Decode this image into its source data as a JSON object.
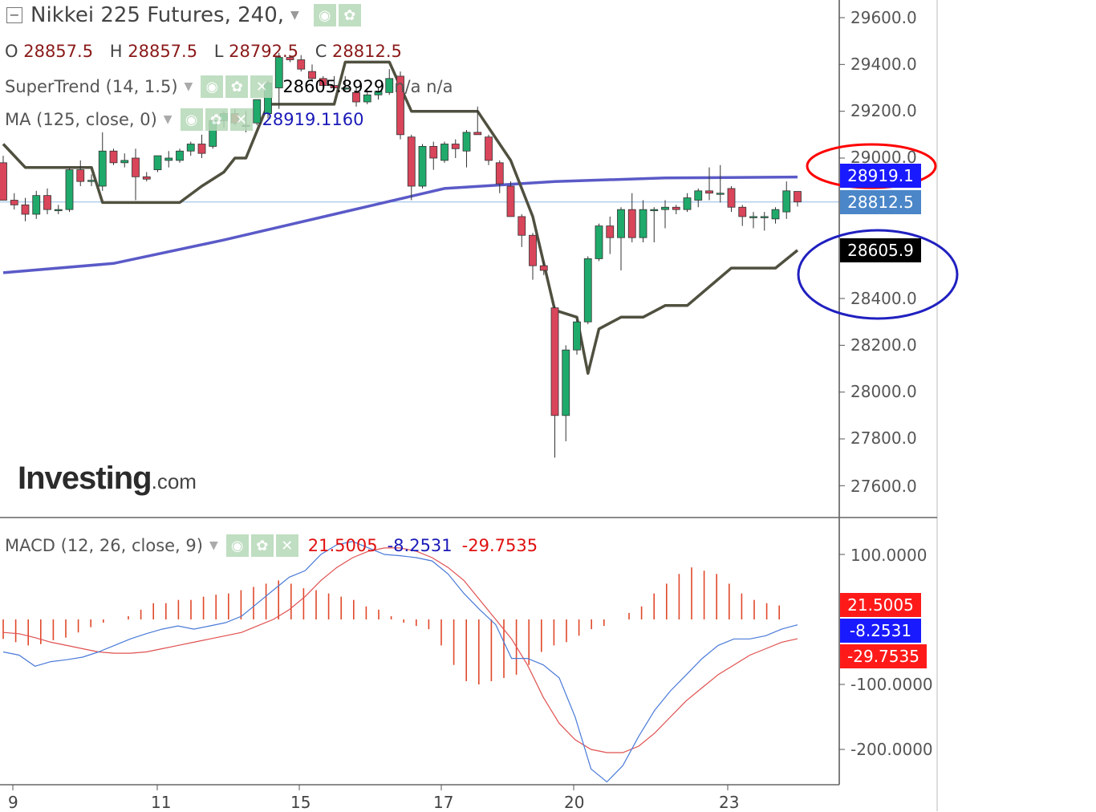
{
  "header": {
    "collapse_symbol": "−",
    "title": "Nikkei 225 Futures, 240,",
    "ohlc": [
      {
        "label": "O",
        "value": "28857.5"
      },
      {
        "label": "H",
        "value": "28857.5"
      },
      {
        "label": "L",
        "value": "28792.5"
      },
      {
        "label": "C",
        "value": "28812.5"
      }
    ]
  },
  "indicators": {
    "supertrend": {
      "label": "SuperTrend (14, 1.5)",
      "value": "28605.8929",
      "extra": "n/a  n/a"
    },
    "ma": {
      "label": "MA (125, close, 0)",
      "value": "28919.1160"
    },
    "macd": {
      "label": "MACD (12, 26, close, 9)",
      "v1": "21.5005",
      "v2": "-8.2531",
      "v3": "-29.7535"
    }
  },
  "icons": {
    "eye": "eye-icon",
    "gear": "gear-icon",
    "close": "close-icon"
  },
  "logo": {
    "main": "Investing",
    "suffix": ".com"
  },
  "price_axis": {
    "ticks": [
      "29600.0",
      "29400.0",
      "29200.0",
      "29000.0",
      "28400.0",
      "28200.0",
      "28000.0",
      "27800.0",
      "27600.0"
    ],
    "tags": [
      {
        "name": "ma-price-tag",
        "text": "28919.1",
        "color": "#1a1aff"
      },
      {
        "name": "last-price-tag",
        "text": "28812.5",
        "color": "#4a86c8"
      },
      {
        "name": "supertrend-price-tag",
        "text": "28605.9",
        "color": "#000000"
      }
    ]
  },
  "macd_axis": {
    "ticks": [
      "100.0000",
      "-100.0000",
      "-200.0000"
    ],
    "tags": [
      {
        "name": "macd-hist-tag",
        "text": "21.5005",
        "color": "#ff1a1a"
      },
      {
        "name": "macd-line-tag",
        "text": "-8.2531",
        "color": "#1a1aff"
      },
      {
        "name": "macd-signal-tag",
        "text": "-29.7535",
        "color": "#ff1a1a"
      }
    ]
  },
  "date_axis": {
    "labels": [
      "9",
      "11",
      "15",
      "17",
      "20",
      "23"
    ]
  },
  "colors": {
    "up": "#1faa6b",
    "down": "#d9455a",
    "supertrend": "#505040",
    "ma": "#5a5ac8",
    "macd": "#4a7ad8",
    "signal": "#e05050",
    "hist": "#e0482a",
    "annot_red": "#ff0000",
    "annot_blue": "#2020c0"
  },
  "chart_data": {
    "type": "candlestick",
    "title": "Nikkei 225 Futures, 240,",
    "timeframe": "240",
    "ylim": [
      27500,
      29650
    ],
    "last_close": 28812.5,
    "candles": [
      {
        "o": 28980,
        "h": 29010,
        "l": 28820,
        "c": 28820
      },
      {
        "o": 28820,
        "h": 28850,
        "l": 28780,
        "c": 28800
      },
      {
        "o": 28800,
        "h": 28830,
        "l": 28730,
        "c": 28760
      },
      {
        "o": 28760,
        "h": 28860,
        "l": 28740,
        "c": 28840
      },
      {
        "o": 28840,
        "h": 28870,
        "l": 28760,
        "c": 28780
      },
      {
        "o": 28780,
        "h": 28800,
        "l": 28760,
        "c": 28780
      },
      {
        "o": 28780,
        "h": 28960,
        "l": 28770,
        "c": 28950
      },
      {
        "o": 28950,
        "h": 28990,
        "l": 28880,
        "c": 28900
      },
      {
        "o": 28900,
        "h": 28930,
        "l": 28880,
        "c": 28905
      },
      {
        "o": 28880,
        "h": 29110,
        "l": 28860,
        "c": 29030
      },
      {
        "o": 29030,
        "h": 29040,
        "l": 28970,
        "c": 28980
      },
      {
        "o": 28980,
        "h": 29020,
        "l": 28960,
        "c": 28990
      },
      {
        "o": 29000,
        "h": 29040,
        "l": 28820,
        "c": 28920
      },
      {
        "o": 28920,
        "h": 28940,
        "l": 28900,
        "c": 28910
      },
      {
        "o": 28950,
        "h": 29010,
        "l": 28940,
        "c": 29010
      },
      {
        "o": 28990,
        "h": 29030,
        "l": 28960,
        "c": 29000
      },
      {
        "o": 28990,
        "h": 29040,
        "l": 28980,
        "c": 29030
      },
      {
        "o": 29030,
        "h": 29070,
        "l": 29010,
        "c": 29060
      },
      {
        "o": 29060,
        "h": 29100,
        "l": 29000,
        "c": 29020
      },
      {
        "o": 29050,
        "h": 29170,
        "l": 29040,
        "c": 29160
      },
      {
        "o": 29160,
        "h": 29200,
        "l": 29130,
        "c": 29190
      },
      {
        "o": 29190,
        "h": 29210,
        "l": 29140,
        "c": 29150
      },
      {
        "o": 29140,
        "h": 29200,
        "l": 29110,
        "c": 29140
      },
      {
        "o": 29150,
        "h": 29250,
        "l": 29140,
        "c": 29250
      },
      {
        "o": 29190,
        "h": 29330,
        "l": 29170,
        "c": 29320
      },
      {
        "o": 29300,
        "h": 29450,
        "l": 29210,
        "c": 29430
      },
      {
        "o": 29430,
        "h": 29440,
        "l": 29410,
        "c": 29420
      },
      {
        "o": 29420,
        "h": 29440,
        "l": 29370,
        "c": 29380
      },
      {
        "o": 29370,
        "h": 29400,
        "l": 29330,
        "c": 29340
      },
      {
        "o": 29340,
        "h": 29350,
        "l": 29300,
        "c": 29310
      },
      {
        "o": 29310,
        "h": 29350,
        "l": 29290,
        "c": 29300
      },
      {
        "o": 29300,
        "h": 29350,
        "l": 29290,
        "c": 29300
      },
      {
        "o": 29280,
        "h": 29300,
        "l": 29220,
        "c": 29240
      },
      {
        "o": 29240,
        "h": 29290,
        "l": 29230,
        "c": 29270
      },
      {
        "o": 29270,
        "h": 29300,
        "l": 29250,
        "c": 29285
      },
      {
        "o": 29280,
        "h": 29380,
        "l": 29270,
        "c": 29340
      },
      {
        "o": 29350,
        "h": 29370,
        "l": 29080,
        "c": 29100
      },
      {
        "o": 29090,
        "h": 29100,
        "l": 28820,
        "c": 28880
      },
      {
        "o": 28880,
        "h": 29060,
        "l": 28870,
        "c": 29050
      },
      {
        "o": 29050,
        "h": 29070,
        "l": 28950,
        "c": 29000
      },
      {
        "o": 28990,
        "h": 29070,
        "l": 28980,
        "c": 29060
      },
      {
        "o": 29060,
        "h": 29080,
        "l": 29000,
        "c": 29040
      },
      {
        "o": 29030,
        "h": 29120,
        "l": 28960,
        "c": 29110
      },
      {
        "o": 29110,
        "h": 29220,
        "l": 29100,
        "c": 29100
      },
      {
        "o": 29090,
        "h": 29100,
        "l": 28970,
        "c": 28990
      },
      {
        "o": 28980,
        "h": 28990,
        "l": 28850,
        "c": 28890
      },
      {
        "o": 28880,
        "h": 28900,
        "l": 28750,
        "c": 28750
      },
      {
        "o": 28750,
        "h": 28760,
        "l": 28620,
        "c": 28670
      },
      {
        "o": 28670,
        "h": 28680,
        "l": 28480,
        "c": 28540
      },
      {
        "o": 28540,
        "h": 28560,
        "l": 28500,
        "c": 28520
      },
      {
        "o": 28360,
        "h": 28370,
        "l": 27720,
        "c": 27900
      },
      {
        "o": 27900,
        "h": 28200,
        "l": 27790,
        "c": 28180
      },
      {
        "o": 28180,
        "h": 28310,
        "l": 28160,
        "c": 28300
      },
      {
        "o": 28300,
        "h": 28580,
        "l": 28290,
        "c": 28570
      },
      {
        "o": 28570,
        "h": 28720,
        "l": 28560,
        "c": 28710
      },
      {
        "o": 28710,
        "h": 28750,
        "l": 28590,
        "c": 28660
      },
      {
        "o": 28660,
        "h": 28790,
        "l": 28520,
        "c": 28780
      },
      {
        "o": 28780,
        "h": 28850,
        "l": 28640,
        "c": 28660
      },
      {
        "o": 28660,
        "h": 28820,
        "l": 28640,
        "c": 28780
      },
      {
        "o": 28780,
        "h": 28790,
        "l": 28640,
        "c": 28780
      },
      {
        "o": 28780,
        "h": 28820,
        "l": 28700,
        "c": 28790
      },
      {
        "o": 28790,
        "h": 28800,
        "l": 28760,
        "c": 28780
      },
      {
        "o": 28780,
        "h": 28850,
        "l": 28770,
        "c": 28830
      },
      {
        "o": 28820,
        "h": 28870,
        "l": 28790,
        "c": 28860
      },
      {
        "o": 28860,
        "h": 28960,
        "l": 28820,
        "c": 28850
      },
      {
        "o": 28850,
        "h": 28970,
        "l": 28810,
        "c": 28850
      },
      {
        "o": 28870,
        "h": 28880,
        "l": 28770,
        "c": 28790
      },
      {
        "o": 28790,
        "h": 28800,
        "l": 28710,
        "c": 28750
      },
      {
        "o": 28750,
        "h": 28770,
        "l": 28700,
        "c": 28750
      },
      {
        "o": 28750,
        "h": 28770,
        "l": 28690,
        "c": 28750
      },
      {
        "o": 28740,
        "h": 28790,
        "l": 28720,
        "c": 28780
      },
      {
        "o": 28770,
        "h": 28900,
        "l": 28740,
        "c": 28860
      },
      {
        "o": 28857.5,
        "h": 28857.5,
        "l": 28792.5,
        "c": 28812.5
      }
    ],
    "supertrend": [
      {
        "i": 0,
        "v": 29060
      },
      {
        "i": 2,
        "v": 28960
      },
      {
        "i": 8,
        "v": 28960
      },
      {
        "i": 9,
        "v": 28810
      },
      {
        "i": 16,
        "v": 28810
      },
      {
        "i": 18,
        "v": 28880
      },
      {
        "i": 20,
        "v": 28940
      },
      {
        "i": 21,
        "v": 29000
      },
      {
        "i": 22,
        "v": 29000
      },
      {
        "i": 24,
        "v": 29230
      },
      {
        "i": 25,
        "v": 29230
      },
      {
        "i": 30,
        "v": 29230
      },
      {
        "i": 31,
        "v": 29410
      },
      {
        "i": 35,
        "v": 29410
      },
      {
        "i": 37,
        "v": 29200
      },
      {
        "i": 43,
        "v": 29200
      },
      {
        "i": 46,
        "v": 28990
      },
      {
        "i": 48,
        "v": 28750
      },
      {
        "i": 50,
        "v": 28350
      },
      {
        "i": 52,
        "v": 28320
      },
      {
        "i": 53,
        "v": 28080
      },
      {
        "i": 54,
        "v": 28270
      },
      {
        "i": 56,
        "v": 28320
      },
      {
        "i": 58,
        "v": 28320
      },
      {
        "i": 60,
        "v": 28370
      },
      {
        "i": 62,
        "v": 28370
      },
      {
        "i": 66,
        "v": 28530
      },
      {
        "i": 70,
        "v": 28530
      },
      {
        "i": 72,
        "v": 28605.8929
      }
    ],
    "ma": [
      {
        "i": 0,
        "v": 28510
      },
      {
        "i": 10,
        "v": 28550
      },
      {
        "i": 20,
        "v": 28650
      },
      {
        "i": 30,
        "v": 28760
      },
      {
        "i": 40,
        "v": 28870
      },
      {
        "i": 50,
        "v": 28900
      },
      {
        "i": 60,
        "v": 28915
      },
      {
        "i": 72,
        "v": 28919.116
      }
    ],
    "macd": {
      "ylim": [
        -260,
        130
      ],
      "macd_line": [
        -50,
        -55,
        -72,
        -65,
        -62,
        -58,
        -50,
        -40,
        -30,
        -22,
        -15,
        -10,
        -15,
        -10,
        -5,
        5,
        25,
        45,
        65,
        75,
        100,
        115,
        120,
        110,
        100,
        98,
        95,
        90,
        70,
        40,
        15,
        -8,
        -60,
        -60,
        -70,
        -90,
        -150,
        -230,
        -250,
        -225,
        -180,
        -140,
        -110,
        -85,
        -60,
        -40,
        -30,
        -30,
        -25,
        -15,
        -8.2531
      ],
      "signal_line": [
        -20,
        -22,
        -28,
        -35,
        -40,
        -45,
        -50,
        -52,
        -52,
        -50,
        -45,
        -40,
        -35,
        -30,
        -25,
        -20,
        -10,
        0,
        15,
        35,
        60,
        80,
        95,
        105,
        110,
        110,
        105,
        95,
        80,
        60,
        30,
        0,
        -30,
        -70,
        -120,
        -160,
        -185,
        -200,
        -205,
        -205,
        -195,
        -175,
        -150,
        -125,
        -105,
        -85,
        -70,
        -55,
        -45,
        -35,
        -29.7535
      ],
      "histogram": [
        -30,
        -35,
        -40,
        -38,
        -32,
        -28,
        -20,
        -12,
        -5,
        0,
        5,
        15,
        25,
        25,
        30,
        30,
        35,
        38,
        40,
        45,
        50,
        55,
        60,
        55,
        48,
        45,
        40,
        35,
        30,
        20,
        15,
        5,
        -5,
        -10,
        -15,
        -40,
        -70,
        -95,
        -100,
        -95,
        -90,
        -85,
        -70,
        -50,
        -40,
        -35,
        -25,
        -15,
        -10,
        0,
        10,
        20,
        40,
        55,
        70,
        80,
        75,
        70,
        55,
        40,
        30,
        25,
        21.5005
      ]
    }
  }
}
